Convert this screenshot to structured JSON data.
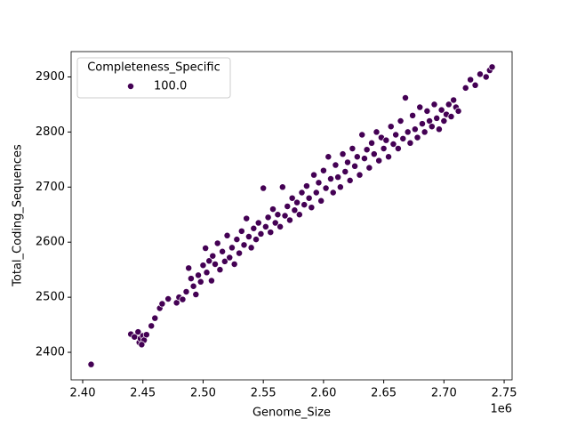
{
  "chart_data": {
    "type": "scatter",
    "x_label": "Genome_Size",
    "y_label": "Total_Coding_Sequences",
    "x_offset_label": "1e6",
    "legend_title": "Completeness_Specific",
    "legend_loc": "upper left",
    "xlim": [
      2.3904,
      2.7566
    ],
    "ylim": [
      2350,
      2946
    ],
    "xticks": [
      {
        "value": 2.4,
        "label": "2.40"
      },
      2.45,
      {
        "value": 2.5,
        "label": "2.50"
      },
      2.55,
      {
        "value": 2.6,
        "label": "2.60"
      },
      2.65,
      {
        "value": 2.7,
        "label": "2.70"
      },
      2.75
    ],
    "yticks": [
      2400,
      2500,
      2600,
      2700,
      2800,
      2900
    ],
    "grid": false,
    "series": [
      {
        "name": "100.0",
        "color": "#440154",
        "x": [
          2.407,
          2.44,
          2.443,
          2.446,
          2.447,
          2.448,
          2.45,
          2.451,
          2.453,
          2.449,
          2.457,
          2.46,
          2.464,
          2.466,
          2.471,
          2.478,
          2.48,
          2.483,
          2.486,
          2.488,
          2.49,
          2.492,
          2.494,
          2.496,
          2.498,
          2.5,
          2.502,
          2.503,
          2.505,
          2.507,
          2.508,
          2.51,
          2.512,
          2.514,
          2.516,
          2.518,
          2.52,
          2.522,
          2.524,
          2.526,
          2.528,
          2.53,
          2.532,
          2.534,
          2.536,
          2.538,
          2.54,
          2.542,
          2.544,
          2.546,
          2.548,
          2.55,
          2.552,
          2.554,
          2.556,
          2.558,
          2.56,
          2.562,
          2.564,
          2.566,
          2.568,
          2.57,
          2.572,
          2.574,
          2.576,
          2.578,
          2.58,
          2.582,
          2.584,
          2.586,
          2.588,
          2.59,
          2.592,
          2.594,
          2.596,
          2.598,
          2.6,
          2.602,
          2.604,
          2.606,
          2.608,
          2.61,
          2.612,
          2.614,
          2.616,
          2.618,
          2.62,
          2.622,
          2.624,
          2.626,
          2.628,
          2.63,
          2.632,
          2.634,
          2.636,
          2.638,
          2.64,
          2.642,
          2.644,
          2.646,
          2.648,
          2.65,
          2.652,
          2.654,
          2.656,
          2.658,
          2.66,
          2.662,
          2.664,
          2.666,
          2.668,
          2.67,
          2.672,
          2.674,
          2.676,
          2.678,
          2.68,
          2.682,
          2.684,
          2.686,
          2.688,
          2.69,
          2.692,
          2.694,
          2.696,
          2.698,
          2.7,
          2.702,
          2.704,
          2.706,
          2.708,
          2.71,
          2.712,
          2.718,
          2.722,
          2.726,
          2.73,
          2.735,
          2.738,
          2.74
        ],
        "values": [
          2378,
          2433,
          2428,
          2437,
          2418,
          2425,
          2430,
          2422,
          2432,
          2414,
          2448,
          2462,
          2480,
          2488,
          2497,
          2490,
          2500,
          2496,
          2510,
          2553,
          2534,
          2520,
          2505,
          2540,
          2528,
          2558,
          2589,
          2545,
          2566,
          2530,
          2575,
          2560,
          2598,
          2550,
          2583,
          2565,
          2612,
          2572,
          2590,
          2560,
          2605,
          2580,
          2620,
          2595,
          2643,
          2610,
          2590,
          2625,
          2605,
          2635,
          2615,
          2698,
          2628,
          2645,
          2618,
          2660,
          2635,
          2650,
          2628,
          2700,
          2648,
          2665,
          2640,
          2680,
          2658,
          2672,
          2650,
          2690,
          2668,
          2702,
          2680,
          2663,
          2722,
          2690,
          2708,
          2675,
          2730,
          2698,
          2755,
          2715,
          2690,
          2740,
          2718,
          2700,
          2760,
          2728,
          2745,
          2712,
          2770,
          2738,
          2755,
          2722,
          2795,
          2752,
          2768,
          2735,
          2780,
          2760,
          2800,
          2748,
          2790,
          2770,
          2785,
          2755,
          2810,
          2778,
          2795,
          2770,
          2820,
          2788,
          2862,
          2800,
          2780,
          2830,
          2805,
          2790,
          2845,
          2815,
          2800,
          2838,
          2820,
          2810,
          2850,
          2825,
          2805,
          2840,
          2820,
          2832,
          2850,
          2828,
          2858,
          2845,
          2838,
          2880,
          2895,
          2885,
          2905,
          2900,
          2912,
          2918
        ]
      }
    ]
  }
}
